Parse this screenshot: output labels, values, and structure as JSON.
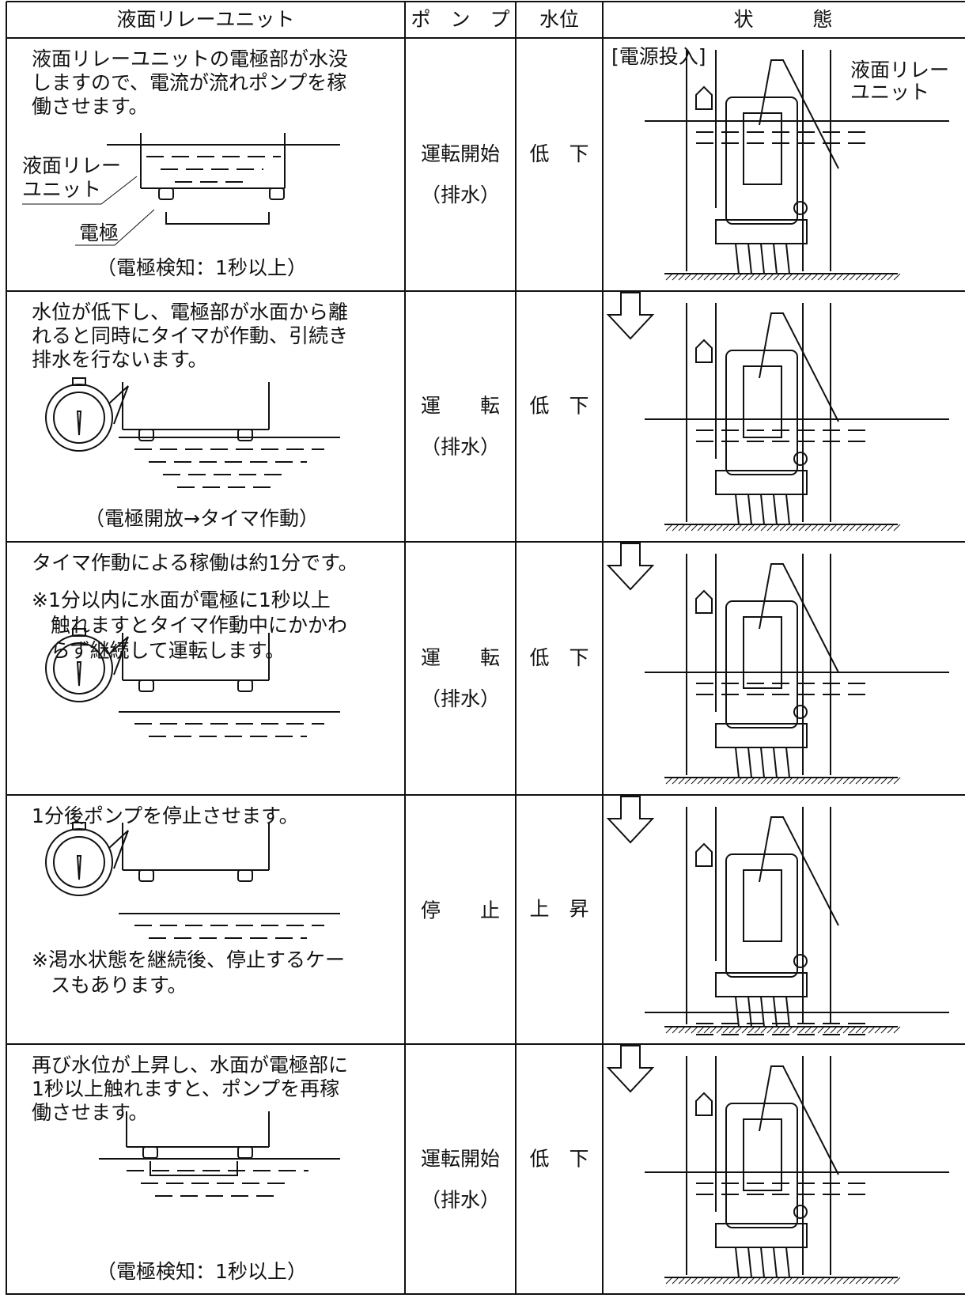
{
  "table": {
    "header": [
      "液面リレーユニット",
      "ポ　ン　プ",
      "水位",
      "状　　　態"
    ],
    "rows": [
      {
        "description": [
          "液面リレーユニットの電極部が水没",
          "しますので、電流が流れポンプを稼",
          "働させます。"
        ],
        "labels": [
          "液面リレー",
          "ユニット",
          "電極"
        ],
        "caption": "（電極検知：1秒以上）",
        "pump": [
          "運転開始",
          "（排水）"
        ],
        "water_level": "低　下",
        "state_labels": [
          "[電源投入]",
          "液面リレー",
          "ユニット"
        ]
      },
      {
        "description": [
          "水位が低下し、電極部が水面から離",
          "れると同時にタイマが作動、引続き",
          "排水を行ないます。"
        ],
        "caption": "（電極開放→タイマ作動）",
        "pump": [
          "運　　転",
          "（排水）"
        ],
        "water_level": "低　下"
      },
      {
        "description": [
          "タイマ作動による稼働は約1分です。"
        ],
        "note": [
          "※1分以内に水面が電極に1秒以上",
          "触れますとタイマ作動中にかかわ",
          "らず継続して運転します。"
        ],
        "pump": [
          "運　　転",
          "（排水）"
        ],
        "water_level": "低　下"
      },
      {
        "description": [
          "1分後ポンプを停止させます。"
        ],
        "note": [
          "※渇水状態を継続後、停止するケー",
          "スもあります。"
        ],
        "pump": [
          "停　　止"
        ],
        "water_level": "上　昇"
      },
      {
        "description": [
          "再び水位が上昇し、水面が電極部に",
          "1秒以上触れますと、ポンプを再稼",
          "働させます。"
        ],
        "caption": "（電極検知：1秒以上）",
        "pump": [
          "運転開始",
          "（排水）"
        ],
        "water_level": "低　下"
      }
    ]
  }
}
